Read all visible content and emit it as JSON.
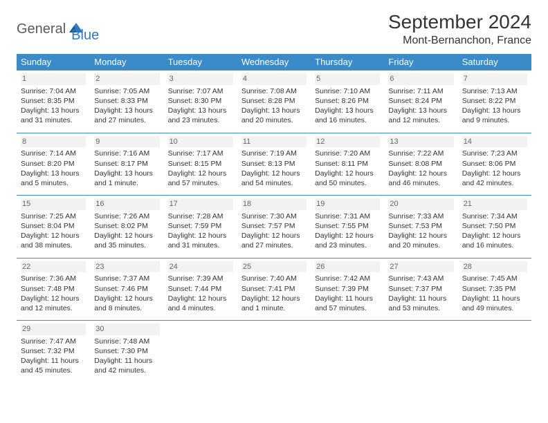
{
  "brand": {
    "general": "General",
    "blue": "Blue"
  },
  "title": "September 2024",
  "location": "Mont-Bernanchon, France",
  "colors": {
    "header_bg": "#3b8bc8",
    "header_text": "#ffffff",
    "row_divider": "#3b8bc8",
    "daynum_bg": "#f2f2f2",
    "brand_gray": "#5a5a5a",
    "brand_blue": "#2f7ac0",
    "text": "#333333"
  },
  "typography": {
    "title_fontsize": 28,
    "location_fontsize": 16,
    "header_fontsize": 13,
    "cell_fontsize": 10.5,
    "logo_fontsize": 20
  },
  "weekdays": [
    "Sunday",
    "Monday",
    "Tuesday",
    "Wednesday",
    "Thursday",
    "Friday",
    "Saturday"
  ],
  "days": [
    {
      "n": "1",
      "sunrise": "Sunrise: 7:04 AM",
      "sunset": "Sunset: 8:35 PM",
      "daylight": "Daylight: 13 hours and 31 minutes."
    },
    {
      "n": "2",
      "sunrise": "Sunrise: 7:05 AM",
      "sunset": "Sunset: 8:33 PM",
      "daylight": "Daylight: 13 hours and 27 minutes."
    },
    {
      "n": "3",
      "sunrise": "Sunrise: 7:07 AM",
      "sunset": "Sunset: 8:30 PM",
      "daylight": "Daylight: 13 hours and 23 minutes."
    },
    {
      "n": "4",
      "sunrise": "Sunrise: 7:08 AM",
      "sunset": "Sunset: 8:28 PM",
      "daylight": "Daylight: 13 hours and 20 minutes."
    },
    {
      "n": "5",
      "sunrise": "Sunrise: 7:10 AM",
      "sunset": "Sunset: 8:26 PM",
      "daylight": "Daylight: 13 hours and 16 minutes."
    },
    {
      "n": "6",
      "sunrise": "Sunrise: 7:11 AM",
      "sunset": "Sunset: 8:24 PM",
      "daylight": "Daylight: 13 hours and 12 minutes."
    },
    {
      "n": "7",
      "sunrise": "Sunrise: 7:13 AM",
      "sunset": "Sunset: 8:22 PM",
      "daylight": "Daylight: 13 hours and 9 minutes."
    },
    {
      "n": "8",
      "sunrise": "Sunrise: 7:14 AM",
      "sunset": "Sunset: 8:20 PM",
      "daylight": "Daylight: 13 hours and 5 minutes."
    },
    {
      "n": "9",
      "sunrise": "Sunrise: 7:16 AM",
      "sunset": "Sunset: 8:17 PM",
      "daylight": "Daylight: 13 hours and 1 minute."
    },
    {
      "n": "10",
      "sunrise": "Sunrise: 7:17 AM",
      "sunset": "Sunset: 8:15 PM",
      "daylight": "Daylight: 12 hours and 57 minutes."
    },
    {
      "n": "11",
      "sunrise": "Sunrise: 7:19 AM",
      "sunset": "Sunset: 8:13 PM",
      "daylight": "Daylight: 12 hours and 54 minutes."
    },
    {
      "n": "12",
      "sunrise": "Sunrise: 7:20 AM",
      "sunset": "Sunset: 8:11 PM",
      "daylight": "Daylight: 12 hours and 50 minutes."
    },
    {
      "n": "13",
      "sunrise": "Sunrise: 7:22 AM",
      "sunset": "Sunset: 8:08 PM",
      "daylight": "Daylight: 12 hours and 46 minutes."
    },
    {
      "n": "14",
      "sunrise": "Sunrise: 7:23 AM",
      "sunset": "Sunset: 8:06 PM",
      "daylight": "Daylight: 12 hours and 42 minutes."
    },
    {
      "n": "15",
      "sunrise": "Sunrise: 7:25 AM",
      "sunset": "Sunset: 8:04 PM",
      "daylight": "Daylight: 12 hours and 38 minutes."
    },
    {
      "n": "16",
      "sunrise": "Sunrise: 7:26 AM",
      "sunset": "Sunset: 8:02 PM",
      "daylight": "Daylight: 12 hours and 35 minutes."
    },
    {
      "n": "17",
      "sunrise": "Sunrise: 7:28 AM",
      "sunset": "Sunset: 7:59 PM",
      "daylight": "Daylight: 12 hours and 31 minutes."
    },
    {
      "n": "18",
      "sunrise": "Sunrise: 7:30 AM",
      "sunset": "Sunset: 7:57 PM",
      "daylight": "Daylight: 12 hours and 27 minutes."
    },
    {
      "n": "19",
      "sunrise": "Sunrise: 7:31 AM",
      "sunset": "Sunset: 7:55 PM",
      "daylight": "Daylight: 12 hours and 23 minutes."
    },
    {
      "n": "20",
      "sunrise": "Sunrise: 7:33 AM",
      "sunset": "Sunset: 7:53 PM",
      "daylight": "Daylight: 12 hours and 20 minutes."
    },
    {
      "n": "21",
      "sunrise": "Sunrise: 7:34 AM",
      "sunset": "Sunset: 7:50 PM",
      "daylight": "Daylight: 12 hours and 16 minutes."
    },
    {
      "n": "22",
      "sunrise": "Sunrise: 7:36 AM",
      "sunset": "Sunset: 7:48 PM",
      "daylight": "Daylight: 12 hours and 12 minutes."
    },
    {
      "n": "23",
      "sunrise": "Sunrise: 7:37 AM",
      "sunset": "Sunset: 7:46 PM",
      "daylight": "Daylight: 12 hours and 8 minutes."
    },
    {
      "n": "24",
      "sunrise": "Sunrise: 7:39 AM",
      "sunset": "Sunset: 7:44 PM",
      "daylight": "Daylight: 12 hours and 4 minutes."
    },
    {
      "n": "25",
      "sunrise": "Sunrise: 7:40 AM",
      "sunset": "Sunset: 7:41 PM",
      "daylight": "Daylight: 12 hours and 1 minute."
    },
    {
      "n": "26",
      "sunrise": "Sunrise: 7:42 AM",
      "sunset": "Sunset: 7:39 PM",
      "daylight": "Daylight: 11 hours and 57 minutes."
    },
    {
      "n": "27",
      "sunrise": "Sunrise: 7:43 AM",
      "sunset": "Sunset: 7:37 PM",
      "daylight": "Daylight: 11 hours and 53 minutes."
    },
    {
      "n": "28",
      "sunrise": "Sunrise: 7:45 AM",
      "sunset": "Sunset: 7:35 PM",
      "daylight": "Daylight: 11 hours and 49 minutes."
    },
    {
      "n": "29",
      "sunrise": "Sunrise: 7:47 AM",
      "sunset": "Sunset: 7:32 PM",
      "daylight": "Daylight: 11 hours and 45 minutes."
    },
    {
      "n": "30",
      "sunrise": "Sunrise: 7:48 AM",
      "sunset": "Sunset: 7:30 PM",
      "daylight": "Daylight: 11 hours and 42 minutes."
    }
  ]
}
